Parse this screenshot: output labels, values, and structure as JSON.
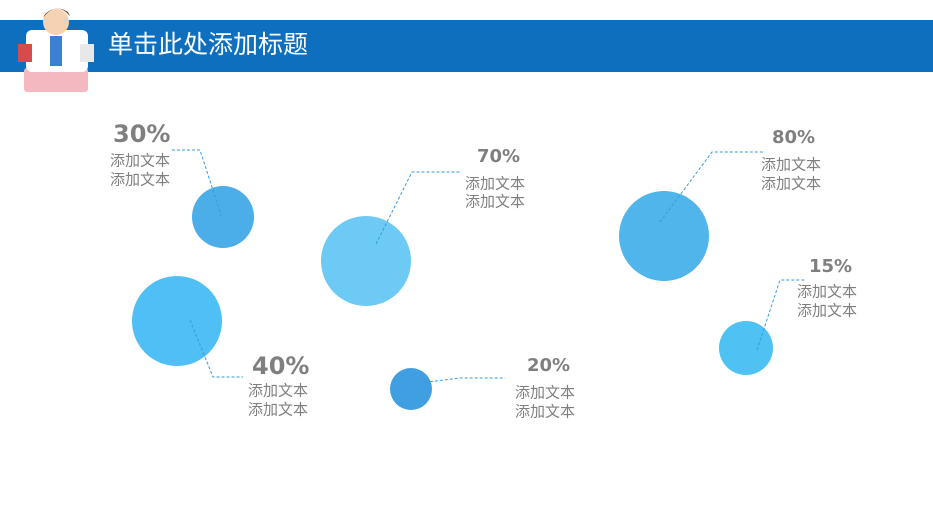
{
  "header": {
    "title": "单击此处添加标题"
  },
  "items": [
    {
      "label": "30%",
      "lines": [
        "添加文本",
        "添加文本"
      ]
    },
    {
      "label": "70%",
      "lines": [
        "添加文本",
        "添加文本"
      ]
    },
    {
      "label": "80%",
      "lines": [
        "添加文本",
        "添加文本"
      ]
    },
    {
      "label": "15%",
      "lines": [
        "添加文本",
        "添加文本"
      ]
    },
    {
      "label": "40%",
      "lines": [
        "添加文本",
        "添加文本"
      ]
    },
    {
      "label": "20%",
      "lines": [
        "添加文本",
        "添加文本"
      ]
    }
  ]
}
